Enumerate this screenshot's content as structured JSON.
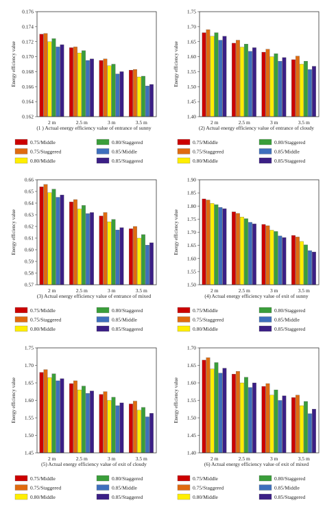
{
  "colors": [
    "#cc0000",
    "#e06b10",
    "#ffee00",
    "#3a9e3a",
    "#3e6fbd",
    "#3b1f86"
  ],
  "chart_data": [
    {
      "type": "bar",
      "caption": "(1 ) Actual energy efficiency value of entrance of sunny",
      "ylabel": "Energy efficiency value",
      "categories": [
        "2 m",
        "2.5 m",
        "3 m",
        "3.5 m"
      ],
      "ylim": [
        0.162,
        0.176
      ],
      "yticks": [
        "0.162",
        "0.164",
        "0.166",
        "0.168",
        "0.170",
        "0.172",
        "0.174",
        "0.176"
      ],
      "legend": [
        "0.75/Middle",
        "0.80/Staggered",
        "0.75/Staggered",
        "0.85/Middle",
        "0.80/Middle",
        "0.85/Staggered"
      ],
      "series": [
        {
          "name": "0.75/Middle",
          "values": [
            0.173,
            0.1712,
            0.1695,
            0.1682
          ]
        },
        {
          "name": "0.75/Staggered",
          "values": [
            0.1731,
            0.1713,
            0.1697,
            0.1683
          ]
        },
        {
          "name": "0.80/Middle",
          "values": [
            0.172,
            0.1705,
            0.1688,
            0.1673
          ]
        },
        {
          "name": "0.80/Staggered",
          "values": [
            0.1724,
            0.1708,
            0.169,
            0.1674
          ]
        },
        {
          "name": "0.85/Middle",
          "values": [
            0.1713,
            0.1695,
            0.1677,
            0.1661
          ]
        },
        {
          "name": "0.85/Staggered",
          "values": [
            0.1716,
            0.1697,
            0.168,
            0.1663
          ]
        }
      ]
    },
    {
      "type": "bar",
      "caption": "(2) Actual energy efficiency value of entrance of cloudy",
      "ylabel": "Energy efficiency value",
      "categories": [
        "2 m",
        "2.5 m",
        "3 m",
        "3.5 m"
      ],
      "ylim": [
        1.4,
        1.75
      ],
      "yticks": [
        "1.40",
        "1.45",
        "1.50",
        "1.55",
        "1.60",
        "1.65",
        "1.70",
        "1.75"
      ],
      "legend": [
        "0.75/Middle",
        "0.80/Staggered",
        "0.75/Staggered",
        "0.85/Middle",
        "0.80/Middle",
        "0.85/Staggered"
      ],
      "series": [
        {
          "name": "0.75/Middle",
          "values": [
            1.68,
            1.645,
            1.615,
            1.59
          ]
        },
        {
          "name": "0.75/Staggered",
          "values": [
            1.69,
            1.655,
            1.625,
            1.602
          ]
        },
        {
          "name": "0.80/Middle",
          "values": [
            1.668,
            1.632,
            1.6,
            1.575
          ]
        },
        {
          "name": "0.80/Staggered",
          "values": [
            1.68,
            1.642,
            1.61,
            1.585
          ]
        },
        {
          "name": "0.85/Middle",
          "values": [
            1.655,
            1.618,
            1.585,
            1.557
          ]
        },
        {
          "name": "0.85/Staggered",
          "values": [
            1.668,
            1.63,
            1.597,
            1.568
          ]
        }
      ]
    },
    {
      "type": "bar",
      "caption": "(3) Actual energy efficiency value of entrance of mixed",
      "ylabel": "Energy efficiency value",
      "categories": [
        "2 m",
        "2.5 m",
        "3 m",
        "3.5 m"
      ],
      "ylim": [
        0.57,
        0.66
      ],
      "yticks": [
        "0.57",
        "0.58",
        "0.59",
        "0.60",
        "0.61",
        "0.62",
        "0.63",
        "0.64",
        "0.65",
        "0.66"
      ],
      "legend": [
        "0.75/Middle",
        "0.80/Staggered",
        "0.75/Staggered",
        "0.85/Middle",
        "0.80/Middle",
        "0.85/Staggered"
      ],
      "series": [
        {
          "name": "0.75/Middle",
          "values": [
            0.654,
            0.641,
            0.629,
            0.618
          ]
        },
        {
          "name": "0.75/Staggered",
          "values": [
            0.656,
            0.643,
            0.632,
            0.62
          ]
        },
        {
          "name": "0.80/Middle",
          "values": [
            0.649,
            0.635,
            0.624,
            0.61
          ]
        },
        {
          "name": "0.80/Staggered",
          "values": [
            0.652,
            0.638,
            0.626,
            0.613
          ]
        },
        {
          "name": "0.85/Middle",
          "values": [
            0.645,
            0.631,
            0.617,
            0.604
          ]
        },
        {
          "name": "0.85/Staggered",
          "values": [
            0.647,
            0.632,
            0.619,
            0.606
          ]
        }
      ]
    },
    {
      "type": "bar",
      "caption": "(4) Actual energy efficiency value of exit of sunny",
      "ylabel": "Energy efficiency value",
      "categories": [
        "2 m",
        "2.5 m",
        "3 m",
        "3.5 m"
      ],
      "ylim": [
        1.5,
        1.9
      ],
      "yticks": [
        "1.50",
        "1.55",
        "1.60",
        "1.65",
        "1.70",
        "1.75",
        "1.80",
        "1.85",
        "1.90"
      ],
      "legend": [
        "0.75/Middle",
        "0.80/Staggered",
        "0.75/Staggered",
        "0.85/Middle",
        "0.80/Middle",
        "0.85/Staggered"
      ],
      "series": [
        {
          "name": "0.75/Middle",
          "values": [
            1.827,
            1.778,
            1.73,
            1.688
          ]
        },
        {
          "name": "0.75/Staggered",
          "values": [
            1.823,
            1.772,
            1.725,
            1.682
          ]
        },
        {
          "name": "0.80/Middle",
          "values": [
            1.81,
            1.758,
            1.708,
            1.665
          ]
        },
        {
          "name": "0.80/Staggered",
          "values": [
            1.805,
            1.752,
            1.703,
            1.652
          ]
        },
        {
          "name": "0.85/Middle",
          "values": [
            1.795,
            1.738,
            1.686,
            1.63
          ]
        },
        {
          "name": "0.85/Staggered",
          "values": [
            1.79,
            1.732,
            1.68,
            1.625
          ]
        }
      ]
    },
    {
      "type": "bar",
      "caption": "(5) Actual energy efficiency value of exit of cloudy",
      "ylabel": "Energy efficiency value",
      "categories": [
        "2 m",
        "2.5 m",
        "3 m",
        "3.5 m"
      ],
      "ylim": [
        1.45,
        1.75
      ],
      "yticks": [
        "1.45",
        "1.50",
        "1.55",
        "1.60",
        "1.65",
        "1.70",
        "1.75"
      ],
      "legend": [
        "0.75/Middle",
        "0.80/Staggered",
        "0.75/Staggered",
        "0.85/Middle",
        "0.80/Middle",
        "0.85/Staggered"
      ],
      "series": [
        {
          "name": "0.75/Middle",
          "values": [
            1.68,
            1.648,
            1.617,
            1.59
          ]
        },
        {
          "name": "0.75/Staggered",
          "values": [
            1.688,
            1.656,
            1.625,
            1.598
          ]
        },
        {
          "name": "0.80/Middle",
          "values": [
            1.665,
            1.63,
            1.6,
            1.572
          ]
        },
        {
          "name": "0.80/Staggered",
          "values": [
            1.676,
            1.641,
            1.609,
            1.58
          ]
        },
        {
          "name": "0.85/Middle",
          "values": [
            1.656,
            1.62,
            1.585,
            1.553
          ]
        },
        {
          "name": "0.85/Staggered",
          "values": [
            1.662,
            1.627,
            1.593,
            1.563
          ]
        }
      ]
    },
    {
      "type": "bar",
      "caption": "(6) Actual energy efficiency value of exit of mixed",
      "ylabel": "Energy efficiency value",
      "categories": [
        "2 m",
        "2.5 m",
        "3 m",
        "3.5 m"
      ],
      "ylim": [
        1.4,
        1.7
      ],
      "yticks": [
        "1.40",
        "1.45",
        "1.50",
        "1.55",
        "1.60",
        "1.65",
        "1.70"
      ],
      "legend": [
        "0.75/Middle",
        "0.80/Staggered",
        "0.75/Staggered",
        "0.85/Middle",
        "0.80/Middle",
        "0.85/Staggered"
      ],
      "series": [
        {
          "name": "0.75/Middle",
          "values": [
            1.665,
            1.625,
            1.59,
            1.558
          ]
        },
        {
          "name": "0.75/Staggered",
          "values": [
            1.672,
            1.633,
            1.598,
            1.565
          ]
        },
        {
          "name": "0.80/Middle",
          "values": [
            1.64,
            1.6,
            1.565,
            1.535
          ]
        },
        {
          "name": "0.80/Staggered",
          "values": [
            1.658,
            1.616,
            1.58,
            1.547
          ]
        },
        {
          "name": "0.85/Middle",
          "values": [
            1.628,
            1.587,
            1.55,
            1.512
          ]
        },
        {
          "name": "0.85/Staggered",
          "values": [
            1.642,
            1.6,
            1.563,
            1.525
          ]
        }
      ]
    }
  ]
}
